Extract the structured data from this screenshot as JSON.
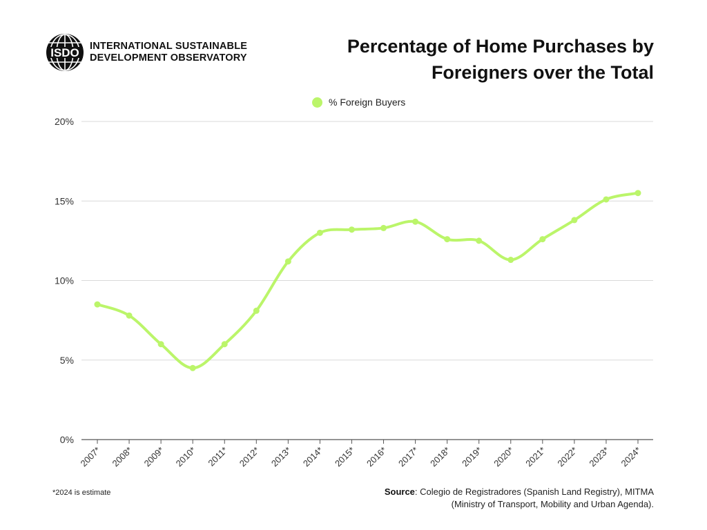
{
  "brand": {
    "logo_text": "ISDO",
    "line1": "INTERNATIONAL SUSTAINABLE",
    "line2": "DEVELOPMENT OBSERVATORY"
  },
  "chart_data": {
    "type": "line",
    "title_line1": "Percentage of Home Purchases by",
    "title_line2": "Foreigners over the Total",
    "xlabel": "",
    "ylabel": "",
    "categories": [
      "2007*",
      "2008*",
      "2009*",
      "2010*",
      "2011*",
      "2012*",
      "2013*",
      "2014*",
      "2015*",
      "2016*",
      "2017*",
      "2018*",
      "2019*",
      "2020*",
      "2021*",
      "2022*",
      "2023*",
      "2024*"
    ],
    "series": [
      {
        "name": "% Foreign Buyers",
        "values": [
          8.5,
          7.8,
          6.0,
          4.5,
          6.0,
          8.1,
          11.2,
          13.0,
          13.2,
          13.3,
          13.7,
          12.6,
          12.5,
          11.3,
          12.6,
          13.8,
          15.1,
          15.5
        ],
        "color": "#bbf56a"
      }
    ],
    "ylim": [
      0,
      20
    ],
    "yticks": [
      0,
      5,
      10,
      15,
      20
    ],
    "ytick_labels": [
      "0%",
      "5%",
      "10%",
      "15%",
      "20%"
    ],
    "grid": true,
    "legend_position": "top-center",
    "gridline_color": "#d9d9d9",
    "axis_color": "#555555"
  },
  "footnote": "*2024 is estimate",
  "source": {
    "label": "Source",
    "line1": ":  Colegio de Registradores (Spanish Land Registry), MITMA",
    "line2": "(Ministry of Transport, Mobility and Urban Agenda)."
  }
}
